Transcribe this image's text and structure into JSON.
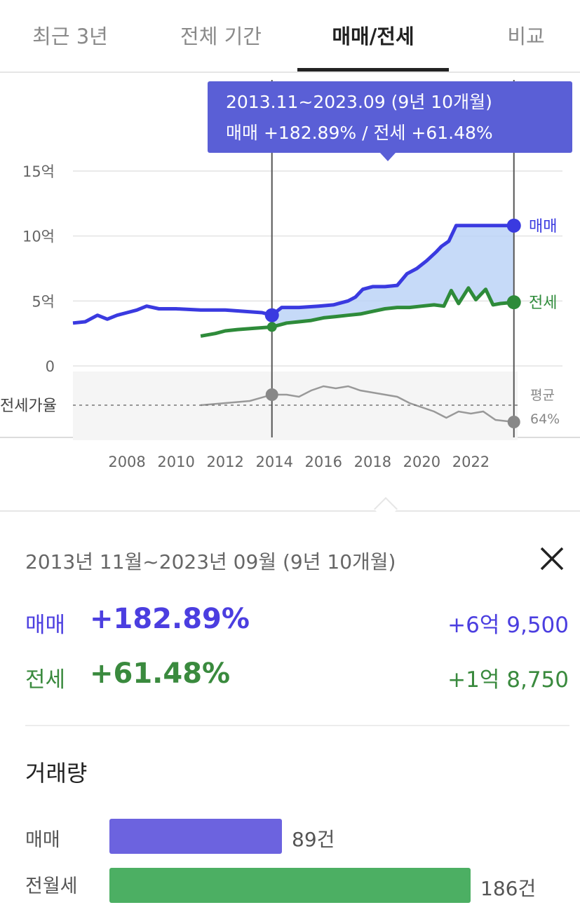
{
  "tabs": [
    {
      "label": "최근 3년"
    },
    {
      "label": "전체 기간"
    },
    {
      "label": "매매/전세",
      "active": true
    },
    {
      "label": "비교"
    }
  ],
  "tooltip": {
    "period": "2013.11~2023.09 (9년 10개월)",
    "values": "매매 +182.89%  /  전세 +61.48%"
  },
  "chart_data": {
    "type": "line",
    "y_ticks": [
      "15억",
      "10억",
      "5억",
      "0"
    ],
    "ylim": [
      0,
      15
    ],
    "x_ticks": [
      "2008",
      "2010",
      "2012",
      "2014",
      "2016",
      "2018",
      "2020",
      "2022"
    ],
    "xlim": [
      2005.8,
      2023.9
    ],
    "series_labels": {
      "sale": "매매",
      "jeonse": "전세"
    },
    "ratio_label": "전세가율",
    "ratio_avg_label": "평균",
    "ratio_avg_value": "64%",
    "colors": {
      "sale": "#3a3ae0",
      "jeonse": "#2e8b3a",
      "ratio": "#999999",
      "fill": "#bcd3f7"
    },
    "series": [
      {
        "key": "sale",
        "values": [
          [
            2005.8,
            3.3
          ],
          [
            2006.3,
            3.4
          ],
          [
            2006.8,
            3.9
          ],
          [
            2007.2,
            3.6
          ],
          [
            2007.6,
            3.9
          ],
          [
            2008.0,
            4.1
          ],
          [
            2008.4,
            4.3
          ],
          [
            2008.8,
            4.6
          ],
          [
            2009.3,
            4.4
          ],
          [
            2010.0,
            4.4
          ],
          [
            2011.0,
            4.3
          ],
          [
            2012.0,
            4.3
          ],
          [
            2012.8,
            4.2
          ],
          [
            2013.5,
            4.1
          ],
          [
            2013.9,
            3.9
          ],
          [
            2014.3,
            4.5
          ],
          [
            2015.0,
            4.5
          ],
          [
            2015.8,
            4.6
          ],
          [
            2016.4,
            4.7
          ],
          [
            2017.0,
            5.0
          ],
          [
            2017.3,
            5.3
          ],
          [
            2017.6,
            5.9
          ],
          [
            2018.0,
            6.1
          ],
          [
            2018.5,
            6.1
          ],
          [
            2019.0,
            6.2
          ],
          [
            2019.4,
            7.1
          ],
          [
            2019.8,
            7.5
          ],
          [
            2020.2,
            8.1
          ],
          [
            2020.6,
            8.8
          ],
          [
            2020.8,
            9.2
          ],
          [
            2021.1,
            9.6
          ],
          [
            2021.4,
            10.8
          ],
          [
            2022.0,
            10.8
          ],
          [
            2022.8,
            10.8
          ],
          [
            2023.75,
            10.8
          ]
        ]
      },
      {
        "key": "jeonse",
        "values": [
          [
            2011.0,
            2.3
          ],
          [
            2011.6,
            2.5
          ],
          [
            2012.0,
            2.7
          ],
          [
            2012.5,
            2.8
          ],
          [
            2013.2,
            2.9
          ],
          [
            2013.9,
            3.0
          ],
          [
            2014.5,
            3.3
          ],
          [
            2015.0,
            3.4
          ],
          [
            2015.5,
            3.5
          ],
          [
            2016.0,
            3.7
          ],
          [
            2016.5,
            3.8
          ],
          [
            2017.0,
            3.9
          ],
          [
            2017.5,
            4.0
          ],
          [
            2018.0,
            4.2
          ],
          [
            2018.5,
            4.4
          ],
          [
            2019.0,
            4.5
          ],
          [
            2019.5,
            4.5
          ],
          [
            2020.0,
            4.6
          ],
          [
            2020.5,
            4.7
          ],
          [
            2020.9,
            4.6
          ],
          [
            2021.2,
            5.8
          ],
          [
            2021.5,
            4.8
          ],
          [
            2021.9,
            6.0
          ],
          [
            2022.2,
            5.1
          ],
          [
            2022.6,
            5.9
          ],
          [
            2022.9,
            4.7
          ],
          [
            2023.2,
            4.8
          ],
          [
            2023.75,
            4.9
          ]
        ]
      },
      {
        "key": "ratio",
        "values": [
          [
            2011.0,
            64
          ],
          [
            2012.0,
            65
          ],
          [
            2013.0,
            66
          ],
          [
            2013.9,
            69
          ],
          [
            2014.5,
            69
          ],
          [
            2015.0,
            68
          ],
          [
            2015.5,
            71
          ],
          [
            2016.0,
            73
          ],
          [
            2016.5,
            72
          ],
          [
            2017.0,
            73
          ],
          [
            2017.5,
            71
          ],
          [
            2018.0,
            70
          ],
          [
            2018.5,
            69
          ],
          [
            2019.0,
            68
          ],
          [
            2019.5,
            65
          ],
          [
            2020.0,
            63
          ],
          [
            2020.5,
            61
          ],
          [
            2021.0,
            58
          ],
          [
            2021.5,
            61
          ],
          [
            2022.0,
            60
          ],
          [
            2022.5,
            61
          ],
          [
            2023.0,
            57
          ],
          [
            2023.75,
            56
          ]
        ]
      }
    ],
    "range_markers": {
      "start": 2013.9,
      "end": 2023.75
    }
  },
  "summary": {
    "period": "2013년 11월~2023년 09월 (9년 10개월)",
    "sale": {
      "label": "매매",
      "pct": "+182.89%",
      "amount": "+6억 9,500"
    },
    "jeonse": {
      "label": "전세",
      "pct": "+61.48%",
      "amount": "+1억 8,750"
    }
  },
  "volume": {
    "title": "거래량",
    "items": [
      {
        "label": "매매",
        "count": "89건",
        "value": 89,
        "color": "#6c63df"
      },
      {
        "label": "전월세",
        "count": "186건",
        "value": 186,
        "color": "#4caf63"
      }
    ],
    "max": 195
  }
}
